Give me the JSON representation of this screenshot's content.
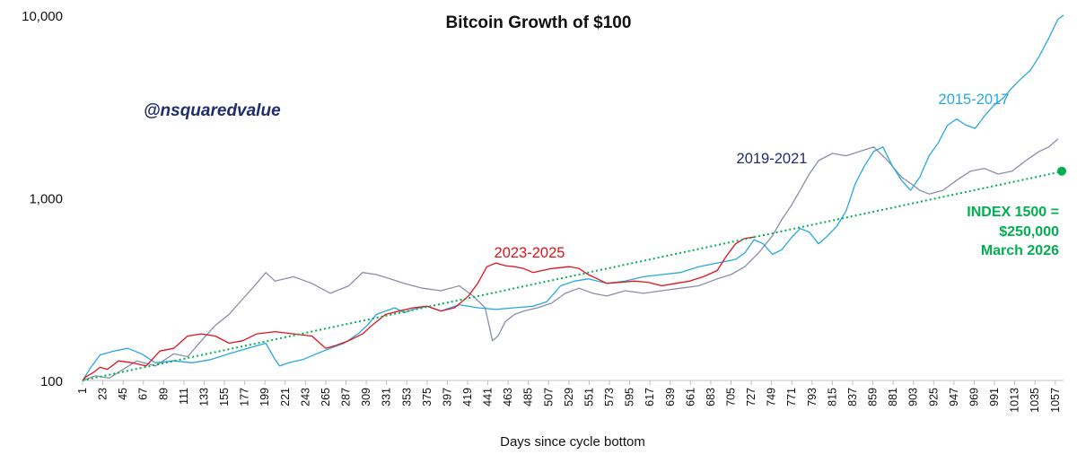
{
  "chart_data": {
    "type": "line",
    "title": "Bitcoin Growth of $100",
    "watermark": "@nsquaredvalue",
    "xlabel": "Days since cycle bottom",
    "ylabel": "",
    "y_scale": "log",
    "ylim": [
      100,
      10000
    ],
    "y_ticks": [
      {
        "value": 100,
        "label": "100"
      },
      {
        "value": 1000,
        "label": "1,000"
      },
      {
        "value": 10000,
        "label": "10,000"
      }
    ],
    "xlim": [
      1,
      1066
    ],
    "x_ticks": [
      1,
      23,
      45,
      67,
      89,
      111,
      133,
      155,
      177,
      199,
      221,
      243,
      265,
      287,
      309,
      331,
      353,
      375,
      397,
      419,
      441,
      463,
      485,
      507,
      529,
      551,
      573,
      595,
      617,
      639,
      661,
      683,
      705,
      727,
      749,
      771,
      793,
      815,
      837,
      859,
      881,
      903,
      925,
      947,
      969,
      991,
      1013,
      1035,
      1057
    ],
    "grid": false,
    "series": [
      {
        "name": "2019-2021",
        "color": "#8a8fa8",
        "label_color": "#1f2d6b",
        "x": [
          1,
          15,
          30,
          45,
          60,
          80,
          100,
          115,
          130,
          145,
          160,
          175,
          190,
          200,
          210,
          230,
          250,
          270,
          290,
          305,
          320,
          335,
          350,
          370,
          390,
          410,
          425,
          438,
          446,
          452,
          460,
          470,
          480,
          495,
          510,
          525,
          540,
          555,
          570,
          590,
          610,
          630,
          650,
          670,
          690,
          705,
          720,
          735,
          750,
          760,
          770,
          780,
          790,
          800,
          815,
          830,
          845,
          860,
          875,
          890,
          900,
          910,
          920,
          935,
          950,
          965,
          980,
          995,
          1010,
          1025,
          1040,
          1050,
          1060
        ],
        "y": [
          100,
          106,
          103,
          115,
          128,
          120,
          140,
          135,
          165,
          200,
          230,
          280,
          340,
          390,
          350,
          370,
          340,
          300,
          330,
          390,
          380,
          360,
          340,
          320,
          310,
          330,
          290,
          250,
          165,
          175,
          210,
          230,
          240,
          250,
          265,
          300,
          320,
          300,
          290,
          310,
          300,
          310,
          320,
          330,
          360,
          380,
          420,
          500,
          620,
          760,
          900,
          1100,
          1350,
          1600,
          1750,
          1700,
          1800,
          1900,
          1600,
          1300,
          1200,
          1100,
          1050,
          1100,
          1250,
          1400,
          1450,
          1350,
          1400,
          1600,
          1800,
          1900,
          2100
        ]
      },
      {
        "name": "2015-2017",
        "color": "#29a8df",
        "label_color": "#29a8df",
        "x": [
          1,
          10,
          20,
          35,
          50,
          65,
          80,
          100,
          120,
          140,
          160,
          180,
          200,
          210,
          215,
          225,
          240,
          255,
          270,
          285,
          300,
          310,
          320,
          330,
          340,
          350,
          360,
          375,
          390,
          410,
          430,
          450,
          470,
          490,
          505,
          520,
          535,
          550,
          570,
          590,
          610,
          630,
          650,
          670,
          690,
          710,
          720,
          730,
          740,
          750,
          760,
          770,
          780,
          790,
          800,
          810,
          820,
          830,
          840,
          850,
          860,
          870,
          880,
          890,
          900,
          910,
          920,
          930,
          940,
          950,
          960,
          970,
          980,
          990,
          1000,
          1010,
          1020,
          1030,
          1040,
          1050,
          1060,
          1066
        ],
        "y": [
          100,
          118,
          138,
          145,
          150,
          140,
          125,
          128,
          125,
          130,
          140,
          150,
          160,
          130,
          120,
          125,
          130,
          140,
          150,
          160,
          180,
          200,
          230,
          240,
          250,
          235,
          245,
          255,
          240,
          260,
          250,
          245,
          250,
          255,
          270,
          330,
          350,
          360,
          340,
          350,
          370,
          380,
          390,
          420,
          440,
          460,
          500,
          590,
          560,
          490,
          520,
          600,
          680,
          650,
          560,
          620,
          700,
          850,
          1200,
          1500,
          1800,
          1900,
          1500,
          1250,
          1100,
          1300,
          1700,
          2000,
          2500,
          2700,
          2500,
          2400,
          2800,
          3200,
          3500,
          4000,
          4500,
          5000,
          6000,
          7500,
          9500,
          10000
        ]
      },
      {
        "name": "2023-2025",
        "color": "#e3121b",
        "label_color": "#e3121b",
        "x": [
          1,
          5,
          12,
          20,
          28,
          40,
          55,
          70,
          85,
          100,
          115,
          130,
          145,
          160,
          175,
          190,
          210,
          230,
          250,
          265,
          275,
          290,
          305,
          315,
          330,
          345,
          360,
          375,
          390,
          405,
          420,
          430,
          440,
          450,
          460,
          470,
          480,
          490,
          500,
          510,
          520,
          530,
          540,
          550,
          560,
          570,
          585,
          600,
          615,
          630,
          645,
          660,
          675,
          690,
          700,
          710,
          720,
          730
        ],
        "y": [
          100,
          105,
          110,
          118,
          115,
          128,
          125,
          120,
          145,
          150,
          175,
          180,
          175,
          160,
          165,
          180,
          185,
          180,
          175,
          150,
          155,
          165,
          180,
          200,
          230,
          240,
          250,
          255,
          240,
          250,
          290,
          340,
          420,
          440,
          425,
          420,
          410,
          390,
          400,
          410,
          415,
          420,
          410,
          380,
          360,
          340,
          345,
          350,
          345,
          330,
          340,
          350,
          370,
          400,
          480,
          560,
          600,
          610
        ]
      }
    ],
    "trendline": {
      "name": "INDEX",
      "color": "#00b050",
      "style": "dotted",
      "x": [
        1,
        1066
      ],
      "y": [
        100,
        1400
      ],
      "end_point": {
        "x": 1066,
        "y": 1400
      },
      "annotation": [
        "INDEX 1500 =",
        "$250,000",
        "March 2026"
      ]
    }
  }
}
